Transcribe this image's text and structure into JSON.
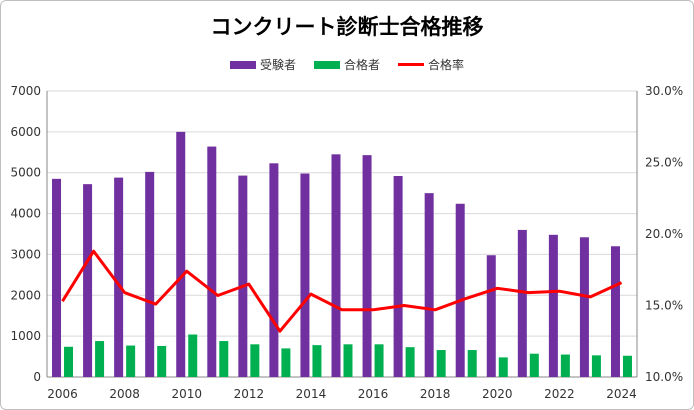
{
  "chart_data": {
    "type": "bar",
    "title": "コンクリート診断士合格推移",
    "x": [
      2006,
      2007,
      2008,
      2009,
      2010,
      2011,
      2012,
      2013,
      2014,
      2015,
      2016,
      2017,
      2018,
      2019,
      2020,
      2021,
      2022,
      2023,
      2024
    ],
    "x_tick_labels": [
      "2006",
      "2008",
      "2010",
      "2012",
      "2014",
      "2016",
      "2018",
      "2020",
      "2022",
      "2024"
    ],
    "series": [
      {
        "name": "受験者",
        "type": "bar",
        "axis": "left",
        "color": "#7030a0",
        "values": [
          4850,
          4720,
          4880,
          5020,
          6000,
          5640,
          4930,
          5230,
          4980,
          5450,
          5430,
          4920,
          4500,
          4240,
          2980,
          3600,
          3480,
          3420,
          3200
        ]
      },
      {
        "name": "合格者",
        "type": "bar",
        "axis": "left",
        "color": "#00b050",
        "values": [
          740,
          880,
          770,
          760,
          1040,
          880,
          800,
          700,
          780,
          800,
          800,
          730,
          660,
          660,
          480,
          570,
          550,
          530,
          520
        ]
      },
      {
        "name": "合格率",
        "type": "line",
        "axis": "right",
        "color": "#ff0000",
        "values": [
          15.3,
          18.8,
          15.9,
          15.1,
          17.4,
          15.7,
          16.5,
          13.2,
          15.8,
          14.7,
          14.7,
          15.0,
          14.7,
          15.5,
          16.2,
          15.9,
          16.0,
          15.6,
          16.6
        ]
      }
    ],
    "y_left": {
      "min": 0,
      "max": 7000,
      "step": 1000,
      "ticks": [
        "0",
        "1000",
        "2000",
        "3000",
        "4000",
        "5000",
        "6000",
        "7000"
      ]
    },
    "y_right": {
      "min": 10,
      "max": 30,
      "step": 5,
      "ticks": [
        "10.0%",
        "15.0%",
        "20.0%",
        "25.0%",
        "30.0%"
      ]
    },
    "grid": true,
    "legend_position": "top-center"
  }
}
